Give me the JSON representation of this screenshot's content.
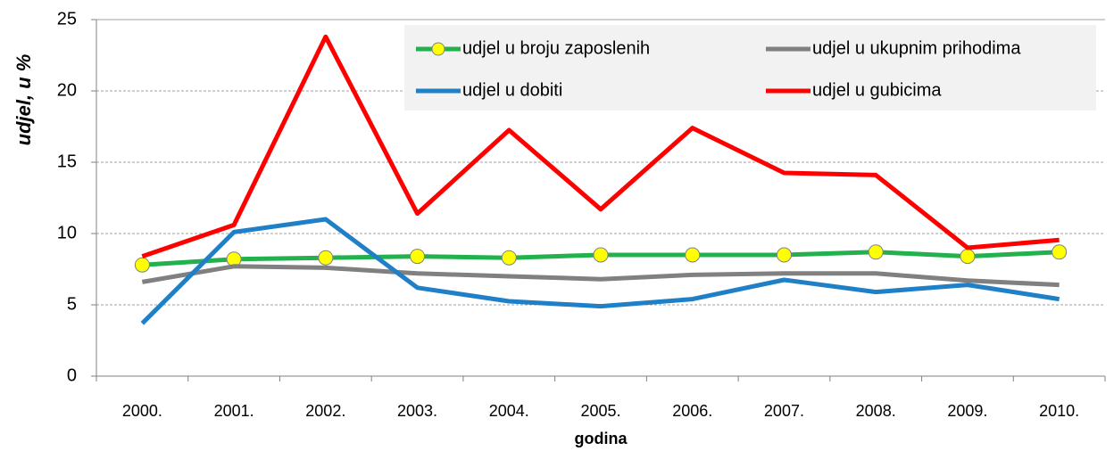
{
  "chart_data": {
    "type": "line",
    "categories": [
      "2000.",
      "2001.",
      "2002.",
      "2003.",
      "2004.",
      "2005.",
      "2006.",
      "2007.",
      "2008.",
      "2009.",
      "2010."
    ],
    "series": [
      {
        "name": "udjel u broju zaposlenih",
        "color": "#22b14c",
        "marker_color": "#ffff00",
        "values": [
          7.8,
          8.2,
          8.3,
          8.4,
          8.3,
          8.5,
          8.5,
          8.5,
          8.7,
          8.4,
          8.7
        ]
      },
      {
        "name": "udjel u ukupnim prihodima",
        "color": "#808080",
        "values": [
          6.6,
          7.7,
          7.6,
          7.2,
          7.0,
          6.8,
          7.1,
          7.2,
          7.2,
          6.7,
          6.4
        ]
      },
      {
        "name": "udjel u dobiti",
        "color": "#1f7fc7",
        "values": [
          3.7,
          10.1,
          11.0,
          6.2,
          5.25,
          4.9,
          5.4,
          6.75,
          5.9,
          6.4,
          5.4
        ]
      },
      {
        "name": "udjel u gubicima",
        "color": "#ff0000",
        "values": [
          8.4,
          10.6,
          23.8,
          11.4,
          17.25,
          11.7,
          17.4,
          14.25,
          14.1,
          9.0,
          9.55
        ]
      }
    ],
    "x_label": "godina",
    "y_label": "udjel, u %",
    "ylim": [
      0,
      25
    ],
    "yticks": [
      0,
      5,
      10,
      15,
      20,
      25
    ],
    "grid": true,
    "legend": "top-right"
  }
}
